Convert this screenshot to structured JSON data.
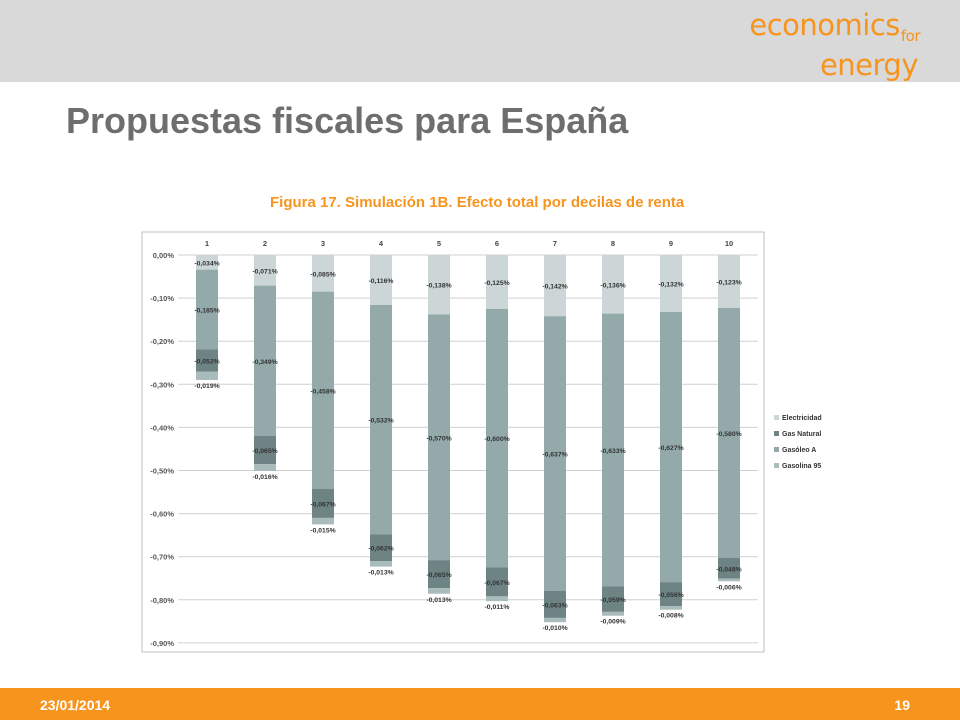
{
  "header": {
    "logo": {
      "line1": "economics",
      "for": "for",
      "line2": "energy"
    },
    "title": "Propuestas fiscales para España"
  },
  "footer": {
    "date": "23/01/2014",
    "page": "19"
  },
  "colors": {
    "accent": "#f7941d",
    "title_gray": "#6d6e70",
    "header_bg": "#d9d9d9"
  },
  "chart_data": {
    "type": "bar",
    "stacked": true,
    "title": "Figura 17. Simulación 1B. Efecto total por decilas de renta",
    "categories": [
      "1",
      "2",
      "3",
      "4",
      "5",
      "6",
      "7",
      "8",
      "9",
      "10"
    ],
    "x_axis_position": "top",
    "ylim": [
      -0.9,
      0.0
    ],
    "yticks": [
      "0,00%",
      "-0,10%",
      "-0,20%",
      "-0,30%",
      "-0,40%",
      "-0,50%",
      "-0,60%",
      "-0,70%",
      "-0,80%",
      "-0,90%"
    ],
    "grid": true,
    "legend_position": "right",
    "series": [
      {
        "name": "Electricidad",
        "color": "#ccd6d6",
        "values": [
          -0.034,
          -0.071,
          -0.085,
          -0.116,
          -0.138,
          -0.125,
          -0.142,
          -0.136,
          -0.132,
          -0.123
        ],
        "labels": [
          "-0,034%",
          "-0,071%",
          "-0,085%",
          "-0,116%",
          "-0,138%",
          "-0,125%",
          "-0,142%",
          "-0,136%",
          "-0,132%",
          "-0,123%"
        ]
      },
      {
        "name": "Gasóleo A",
        "color": "#93a9aa",
        "values": [
          -0.185,
          -0.349,
          -0.458,
          -0.532,
          -0.57,
          -0.6,
          -0.637,
          -0.633,
          -0.627,
          -0.58
        ],
        "labels": [
          "-0,185%",
          "-0,349%",
          "-0,458%",
          "-0,532%",
          "-0,570%",
          "-0,600%",
          "-0,637%",
          "-0,633%",
          "-0,627%",
          "-0,580%"
        ]
      },
      {
        "name": "Gas Natural",
        "color": "#6e8384",
        "values": [
          -0.052,
          -0.065,
          -0.067,
          -0.062,
          -0.065,
          -0.067,
          -0.063,
          -0.059,
          -0.056,
          -0.048
        ],
        "labels": [
          "-0,052%",
          "-0,065%",
          "-0,067%",
          "-0,062%",
          "-0,065%",
          "-0,067%",
          "-0,063%",
          "-0,059%",
          "-0,056%",
          "-0,048%"
        ]
      },
      {
        "name": "Gasolina 95",
        "color": "#aabbbc",
        "values": [
          -0.019,
          -0.016,
          -0.015,
          -0.013,
          -0.013,
          -0.011,
          -0.01,
          -0.009,
          -0.008,
          -0.006
        ],
        "labels": [
          "-0,019%",
          "-0,016%",
          "-0,015%",
          "-0,013%",
          "-0,013%",
          "-0,011%",
          "-0,010%",
          "-0,009%",
          "-0,008%",
          "-0,006%"
        ]
      }
    ],
    "legend": [
      "Electricidad",
      "Gas Natural",
      "Gasóleo A",
      "Gasolina 95"
    ]
  }
}
